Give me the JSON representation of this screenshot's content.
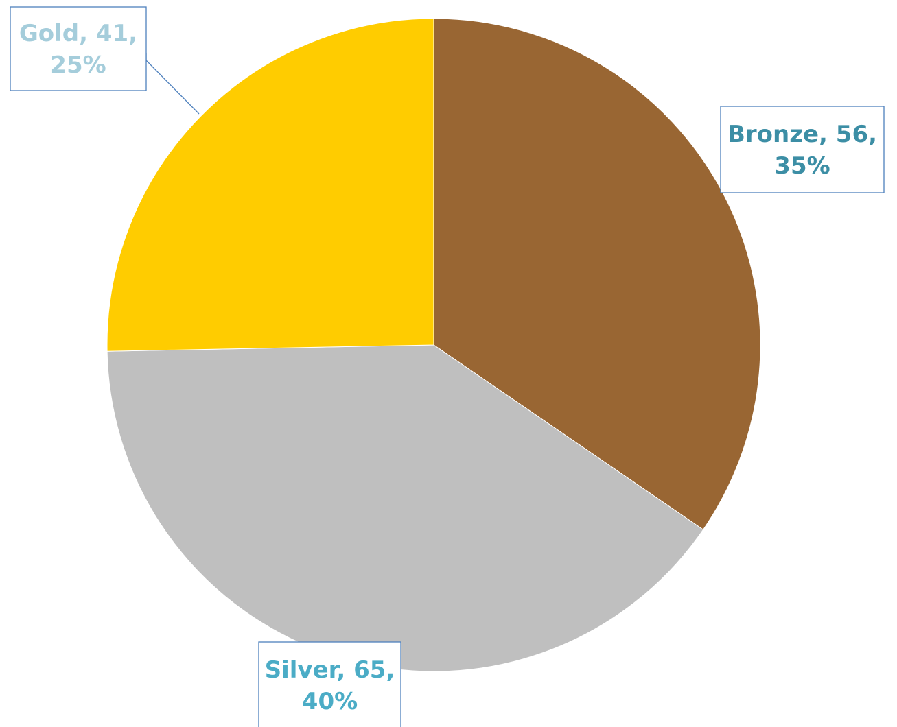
{
  "chart_data": {
    "type": "pie",
    "title": "",
    "slices": [
      {
        "label": "Bronze",
        "value": 56,
        "percent": "35%",
        "color": "#996633",
        "label_color": "#3C8EA5"
      },
      {
        "label": "Silver",
        "value": 65,
        "percent": "40%",
        "color": "#BFBFBF",
        "label_color": "#4BACC6"
      },
      {
        "label": "Gold",
        "value": 41,
        "percent": "25%",
        "color": "#FFCC00",
        "label_color": "#A5CDDB"
      }
    ],
    "start_angle_deg": 0,
    "direction": "clockwise",
    "legend": "none",
    "data_labels": "category, value, percentage",
    "label_border_color": "#4F81BD"
  }
}
